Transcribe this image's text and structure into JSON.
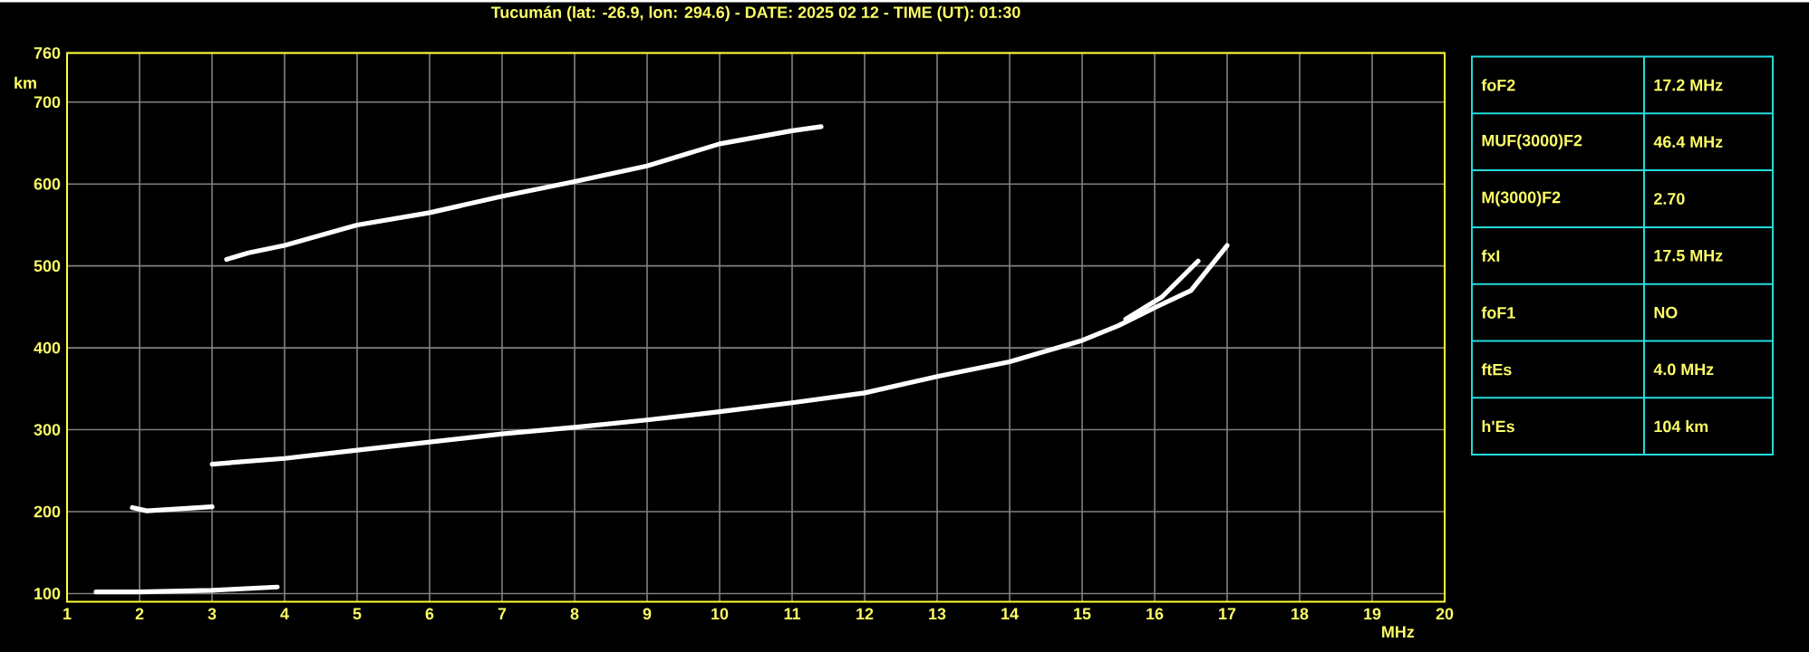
{
  "chart_data": [
    {
      "type": "line",
      "title": "Tucumán (lat: -26.9, lon: 294.6) - DATE: 2025 02 12 - TIME (UT): 01:30",
      "xlabel": "MHz",
      "ylabel": "km",
      "xlim": [
        1,
        20
      ],
      "ylim": [
        90,
        760
      ],
      "xticks": [
        1,
        2,
        3,
        4,
        5,
        6,
        7,
        8,
        9,
        10,
        11,
        12,
        13,
        14,
        15,
        16,
        17,
        18,
        19,
        20
      ],
      "yticks": [
        100,
        200,
        300,
        400,
        500,
        600,
        700,
        760
      ],
      "grid": true,
      "marker": "none",
      "line_style": "solid",
      "series": [
        {
          "color": "#ffffff",
          "x": [
            1.4,
            2,
            3,
            3.9
          ],
          "values": [
            102,
            102,
            104,
            108
          ]
        },
        {
          "color": "#ffffff",
          "x": [
            1.9,
            2.1,
            3.0
          ],
          "values": [
            205,
            201,
            206
          ]
        },
        {
          "color": "#ffffff",
          "x": [
            3,
            4,
            5,
            6,
            7,
            8,
            9,
            10,
            11,
            12,
            13,
            14,
            15,
            15.5,
            16,
            16.5,
            17
          ],
          "values": [
            258,
            265,
            275,
            285,
            295,
            303,
            312,
            322,
            333,
            345,
            365,
            383,
            409,
            427,
            449,
            470,
            525
          ]
        },
        {
          "color": "#ffffff",
          "x": [
            15.6,
            16.1,
            16.6
          ],
          "values": [
            435,
            462,
            506
          ]
        },
        {
          "color": "#ffffff",
          "x": [
            3.2,
            3.5,
            4,
            5,
            6,
            7,
            8,
            9,
            10,
            11,
            11.4
          ],
          "values": [
            508,
            516,
            525,
            550,
            565,
            585,
            603,
            622,
            649,
            665,
            670
          ]
        }
      ]
    },
    {
      "type": "other",
      "annotations": [
        "foF2",
        "17.2 MHz",
        "MUF(3000)F2",
        "46.4 MHz",
        "M(3000)F2",
        "2.70",
        "fxI",
        "17.5 MHz",
        "foF1",
        "NO",
        "ftEs",
        "4.0 MHz",
        "h'Es",
        "104 km"
      ]
    }
  ]
}
